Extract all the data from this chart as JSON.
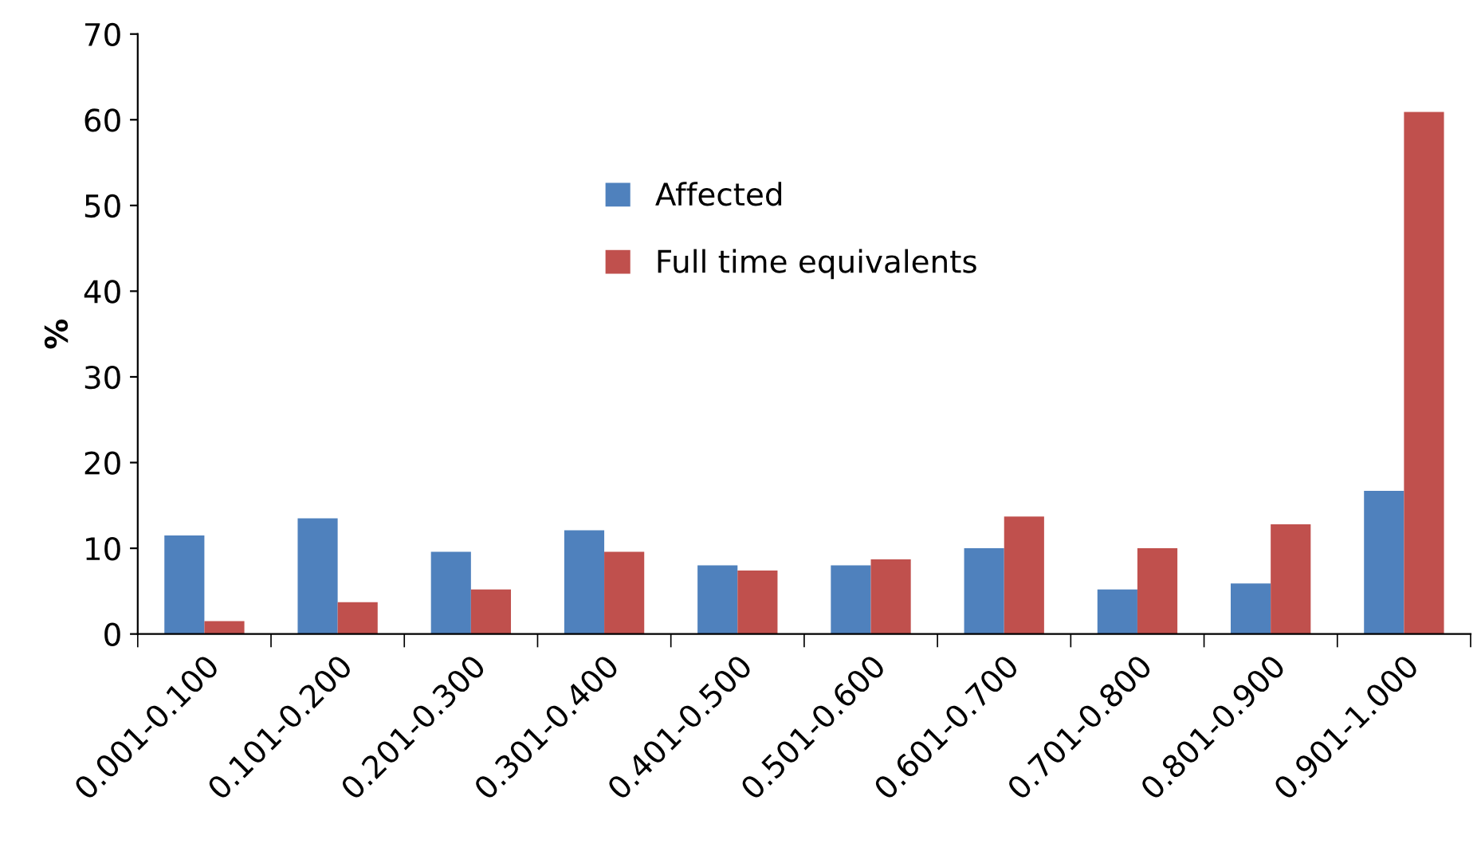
{
  "chart_data": {
    "type": "bar",
    "ylabel": "%",
    "categories": [
      "0.001-0.100",
      "0.101-0.200",
      "0.201-0.300",
      "0.301-0.400",
      "0.401-0.500",
      "0.501-0.600",
      "0.601-0.700",
      "0.701-0.800",
      "0.801-0.900",
      "0.901-1.000"
    ],
    "series": [
      {
        "name": "Affected",
        "color": "#4f81bd",
        "values": [
          11.5,
          13.5,
          9.6,
          12.1,
          8.0,
          8.0,
          10.0,
          5.2,
          5.9,
          16.7
        ]
      },
      {
        "name": "Full time equivalents",
        "color": "#c0504d",
        "values": [
          1.5,
          3.7,
          5.2,
          9.6,
          7.4,
          8.7,
          13.7,
          10.0,
          12.8,
          60.9
        ]
      }
    ],
    "ylim": [
      0,
      70
    ],
    "yticks": [
      0,
      10,
      20,
      30,
      40,
      50,
      60,
      70
    ],
    "grid": false,
    "legend": "top"
  }
}
